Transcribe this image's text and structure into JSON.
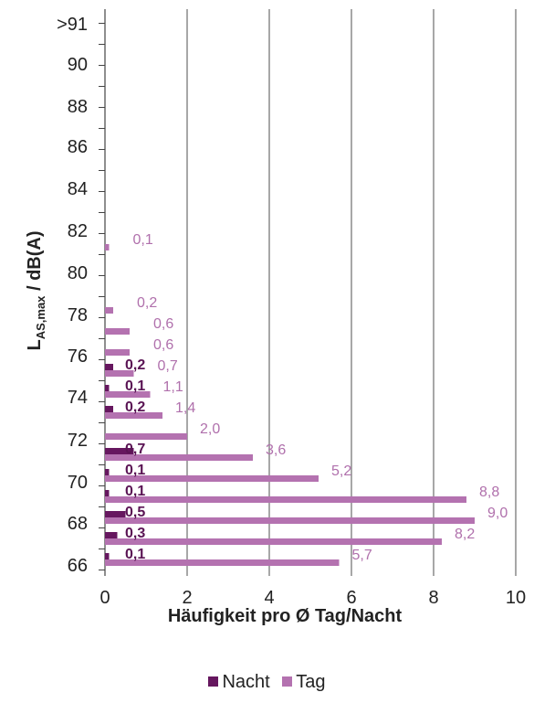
{
  "chart_data": {
    "type": "bar",
    "orientation": "horizontal",
    "ylabel": "L_AS,max / dB(A)",
    "ylabel_main": "L",
    "ylabel_sub": "AS,max",
    "ylabel_tail": " / dB(A)",
    "xlabel": "Häufigkeit pro Ø Tag/Nacht",
    "xlim": [
      0,
      10
    ],
    "xticks": [
      "0",
      "2",
      "4",
      "6",
      "8",
      "10"
    ],
    "y_tick_labels": [
      ">91",
      "90",
      "88",
      "86",
      "84",
      "82",
      "80",
      "78",
      "76",
      "74",
      "72",
      "70",
      "68",
      "66"
    ],
    "grid": "vertical",
    "legend_position": "bottom",
    "colors": {
      "Nacht": "#66175f",
      "Tag": "#b472b0",
      "grid": "#8a8a8a",
      "label_day": "#b070ac",
      "label_night": "#5a1454"
    },
    "series": [
      {
        "name": "Tag",
        "points": [
          {
            "level": 66,
            "value": 5.7,
            "label": "5,7"
          },
          {
            "level": 67,
            "value": 8.2,
            "label": "8,2"
          },
          {
            "level": 68,
            "value": 9.0,
            "label": "9,0"
          },
          {
            "level": 69,
            "value": 8.8,
            "label": "8,8"
          },
          {
            "level": 70,
            "value": 5.2,
            "label": "5,2"
          },
          {
            "level": 71,
            "value": 3.6,
            "label": "3,6"
          },
          {
            "level": 72,
            "value": 2.0,
            "label": "2,0"
          },
          {
            "level": 73,
            "value": 1.4,
            "label": "1,4"
          },
          {
            "level": 74,
            "value": 1.1,
            "label": "1,1"
          },
          {
            "level": 75,
            "value": 0.7,
            "label": "0,7"
          },
          {
            "level": 76,
            "value": 0.6,
            "label": "0,6"
          },
          {
            "level": 77,
            "value": 0.6,
            "label": "0,6"
          },
          {
            "level": 78,
            "value": 0.2,
            "label": "0,2"
          },
          {
            "level": 81,
            "value": 0.1,
            "label": "0,1"
          }
        ]
      },
      {
        "name": "Nacht",
        "points": [
          {
            "level": 66,
            "value": 0.1,
            "label": "0,1"
          },
          {
            "level": 67,
            "value": 0.3,
            "label": "0,3"
          },
          {
            "level": 68,
            "value": 0.5,
            "label": "0,5"
          },
          {
            "level": 69,
            "value": 0.1,
            "label": "0,1"
          },
          {
            "level": 70,
            "value": 0.1,
            "label": "0,1"
          },
          {
            "level": 71,
            "value": 0.7,
            "label": "0,7"
          },
          {
            "level": 73,
            "value": 0.2,
            "label": "0,2"
          },
          {
            "level": 74,
            "value": 0.1,
            "label": "0,1"
          },
          {
            "level": 75,
            "value": 0.2,
            "label": "0,2"
          }
        ]
      }
    ]
  },
  "legend": {
    "nacht_label": "Nacht",
    "tag_label": "Tag"
  }
}
